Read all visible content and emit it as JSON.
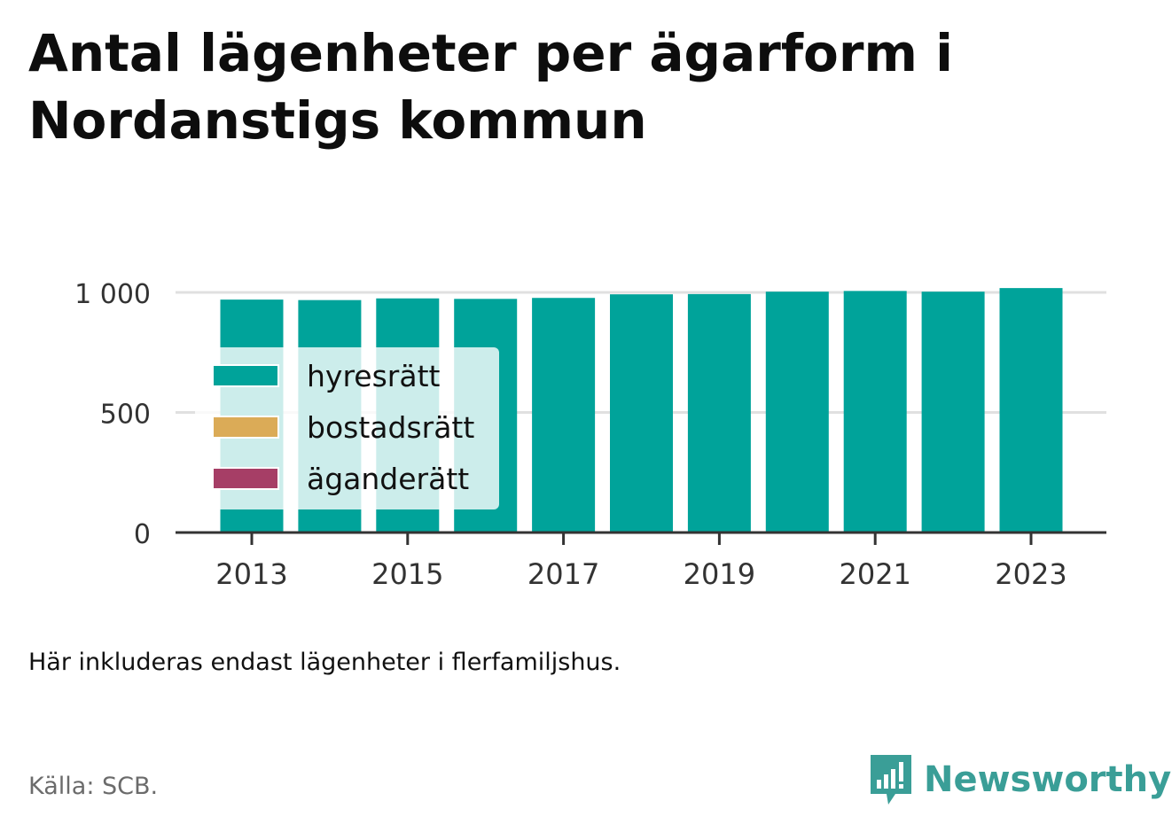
{
  "title": "Antal lägenheter per ägarform i Nordanstigs kommun",
  "note": "Här inkluderas endast lägenheter i flerfamiljshus.",
  "source": "Källa: SCB.",
  "brand": {
    "name": "Newsworthy",
    "icon": "newsworthy-logo-icon",
    "color": "#3a9e97"
  },
  "chart_data": {
    "type": "bar",
    "stacked": true,
    "x": [
      2013,
      2014,
      2015,
      2016,
      2017,
      2018,
      2019,
      2020,
      2021,
      2022,
      2023
    ],
    "x_tick_labels": [
      "2013",
      "2015",
      "2017",
      "2019",
      "2021",
      "2023"
    ],
    "y_ticks": [
      0,
      500,
      1000
    ],
    "y_tick_labels": [
      "0",
      "500",
      "1 000"
    ],
    "ylim": [
      0,
      1000
    ],
    "grid": true,
    "legend_position": "bottom-left",
    "series": [
      {
        "name": "hyresrätt",
        "color": "#00a39a",
        "values": [
          970,
          968,
          975,
          973,
          977,
          992,
          993,
          1003,
          1006,
          1003,
          1018
        ]
      },
      {
        "name": "bostadsrätt",
        "color": "#dbab57",
        "values": [
          0,
          0,
          0,
          0,
          0,
          0,
          0,
          0,
          0,
          0,
          0
        ]
      },
      {
        "name": "äganderätt",
        "color": "#a63e66",
        "values": [
          0,
          0,
          0,
          0,
          0,
          0,
          0,
          0,
          0,
          0,
          0
        ]
      }
    ]
  }
}
